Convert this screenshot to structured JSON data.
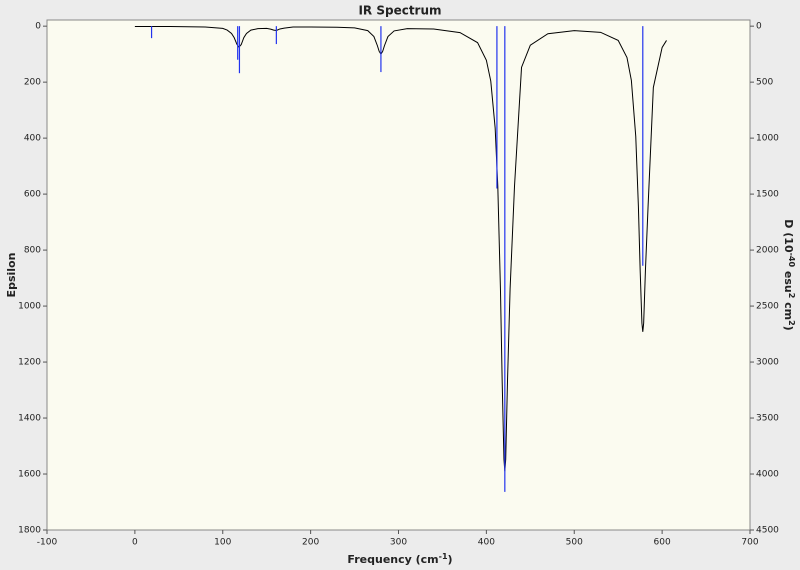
{
  "chart_data": {
    "type": "line",
    "title": "IR Spectrum",
    "xlabel_parts": [
      "Frequency (cm",
      "-1",
      ")"
    ],
    "ylabel": "Epsilon",
    "y2label_parts": [
      "D (10",
      "-40",
      " esu",
      "2",
      " cm",
      "2",
      ")"
    ],
    "xlim": [
      -100,
      700
    ],
    "xticks": [
      -100,
      0,
      100,
      200,
      300,
      400,
      500,
      600,
      700
    ],
    "ylim": [
      -22,
      1800
    ],
    "yticks": [
      0,
      200,
      400,
      600,
      800,
      1000,
      1200,
      1400,
      1600,
      1800
    ],
    "y2lim": [
      -55,
      4500
    ],
    "y2ticks": [
      0,
      500,
      1000,
      1500,
      2000,
      2500,
      3000,
      3500,
      4000,
      4500
    ],
    "y_inverted": true,
    "series": [
      {
        "type": "line",
        "color": "#000000",
        "x": [
          0,
          20,
          40,
          60,
          80,
          100,
          105,
          110,
          113,
          116,
          118,
          119,
          121,
          124,
          127,
          132,
          140,
          150,
          155,
          158,
          160,
          162,
          165,
          170,
          180,
          200,
          230,
          250,
          265,
          272,
          276,
          278,
          280,
          282,
          284,
          288,
          295,
          310,
          340,
          370,
          390,
          400,
          405,
          410,
          413,
          416,
          418,
          420,
          421,
          422,
          424,
          427,
          432,
          440,
          450,
          470,
          500,
          530,
          550,
          560,
          565,
          570,
          573,
          575,
          577,
          578,
          579,
          581,
          584,
          590,
          600,
          605
        ],
        "values": [
          1,
          1,
          1,
          2,
          3,
          8,
          14,
          26,
          41,
          64,
          74,
          73,
          66,
          41,
          26,
          14,
          9,
          8,
          11,
          14,
          15,
          14,
          10,
          7,
          3,
          3,
          4,
          6,
          16,
          37,
          70,
          90,
          100,
          90,
          70,
          37,
          17,
          9,
          10,
          23,
          59,
          122,
          196,
          364,
          572,
          938,
          1272,
          1547,
          1590,
          1547,
          1272,
          938,
          572,
          147,
          68,
          27,
          16,
          22,
          51,
          112,
          194,
          394,
          645,
          872,
          1061,
          1092,
          1061,
          872,
          645,
          219,
          76,
          51
        ]
      },
      {
        "type": "stick",
        "axis": "y2",
        "color": "#2233ee",
        "x": [
          19,
          117,
          119,
          161,
          280,
          412,
          421,
          578
        ],
        "values": [
          107,
          300,
          420,
          160,
          410,
          1450,
          4160,
          2140
        ]
      }
    ]
  }
}
